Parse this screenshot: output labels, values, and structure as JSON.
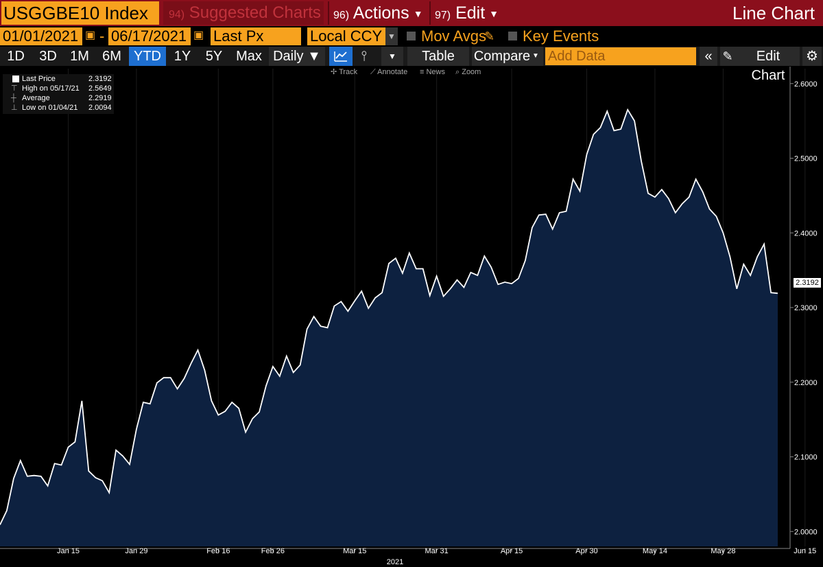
{
  "header": {
    "ticker": "USGGBE10 Index",
    "suggested_num": "94)",
    "suggested_label": "Suggested Charts",
    "actions_num": "96)",
    "actions_label": "Actions",
    "edit_num": "97)",
    "edit_label": "Edit",
    "view_title": "Line Chart"
  },
  "options": {
    "start_date": "01/01/2021",
    "end_date": "06/17/2021",
    "field": "Last Px",
    "currency": "Local CCY",
    "mov_avgs": "Mov Avgs",
    "key_events": "Key Events"
  },
  "toolbar": {
    "periods": [
      "1D",
      "3D",
      "1M",
      "6M",
      "YTD",
      "1Y",
      "5Y",
      "Max"
    ],
    "active_period": "YTD",
    "frequency": "Daily ▼",
    "table": "Table",
    "compare": "Compare",
    "add_data_placeholder": "Add Data",
    "edit_chart": "Edit Chart"
  },
  "tools": {
    "track": "Track",
    "annotate": "Annotate",
    "news": "News",
    "zoom": "Zoom"
  },
  "legend": {
    "last_label": "Last Price",
    "last_value": "2.3192",
    "high_label": "High on 05/17/21",
    "high_value": "2.5649",
    "avg_label": "Average",
    "avg_value": "2.2919",
    "low_label": "Low on 01/04/21",
    "low_value": "2.0094"
  },
  "last_badge": "2.3192",
  "colors": {
    "fill": "#0d2140",
    "line": "#ffffff",
    "accent": "#f7a21e",
    "header": "#8b0f1c",
    "active_tab": "#1e6fd0"
  },
  "chart_data": {
    "type": "area",
    "ylim": [
      1.98,
      2.62
    ],
    "yticks": [
      2.0,
      2.1,
      2.2,
      2.3,
      2.4,
      2.5,
      2.6
    ],
    "ytick_labels": [
      "2.0000",
      "2.1000",
      "2.2000",
      "2.3000",
      "2.4000",
      "2.5000",
      "2.6000"
    ],
    "xticks": [
      {
        "label": "Jan 15",
        "index": 10
      },
      {
        "label": "Jan 29",
        "index": 20
      },
      {
        "label": "Feb 16",
        "index": 32
      },
      {
        "label": "Feb 26",
        "index": 40
      },
      {
        "label": "Mar 15",
        "index": 52
      },
      {
        "label": "Mar 31",
        "index": 64
      },
      {
        "label": "Apr 15",
        "index": 75
      },
      {
        "label": "Apr 30",
        "index": 86
      },
      {
        "label": "May 14",
        "index": 96
      },
      {
        "label": "May 28",
        "index": 106
      },
      {
        "label": "Jun 15",
        "index": 118
      }
    ],
    "year_label": "2021",
    "values": [
      2.009,
      2.028,
      2.071,
      2.095,
      2.074,
      2.075,
      2.074,
      2.061,
      2.091,
      2.089,
      2.113,
      2.12,
      2.175,
      2.081,
      2.072,
      2.068,
      2.052,
      2.109,
      2.101,
      2.09,
      2.137,
      2.173,
      2.171,
      2.199,
      2.206,
      2.206,
      2.191,
      2.205,
      2.225,
      2.243,
      2.216,
      2.175,
      2.156,
      2.161,
      2.173,
      2.165,
      2.133,
      2.151,
      2.16,
      2.195,
      2.221,
      2.208,
      2.235,
      2.213,
      2.223,
      2.271,
      2.288,
      2.275,
      2.273,
      2.302,
      2.308,
      2.295,
      2.309,
      2.322,
      2.299,
      2.313,
      2.32,
      2.359,
      2.366,
      2.346,
      2.373,
      2.352,
      2.352,
      2.316,
      2.342,
      2.315,
      2.325,
      2.337,
      2.327,
      2.347,
      2.343,
      2.369,
      2.354,
      2.331,
      2.334,
      2.332,
      2.339,
      2.363,
      2.407,
      2.424,
      2.425,
      2.405,
      2.427,
      2.429,
      2.472,
      2.456,
      2.505,
      2.532,
      2.541,
      2.563,
      2.537,
      2.539,
      2.565,
      2.55,
      2.496,
      2.453,
      2.448,
      2.458,
      2.446,
      2.427,
      2.439,
      2.448,
      2.472,
      2.455,
      2.432,
      2.422,
      2.4,
      2.368,
      2.325,
      2.358,
      2.343,
      2.368,
      2.385,
      2.32,
      2.319
    ]
  }
}
